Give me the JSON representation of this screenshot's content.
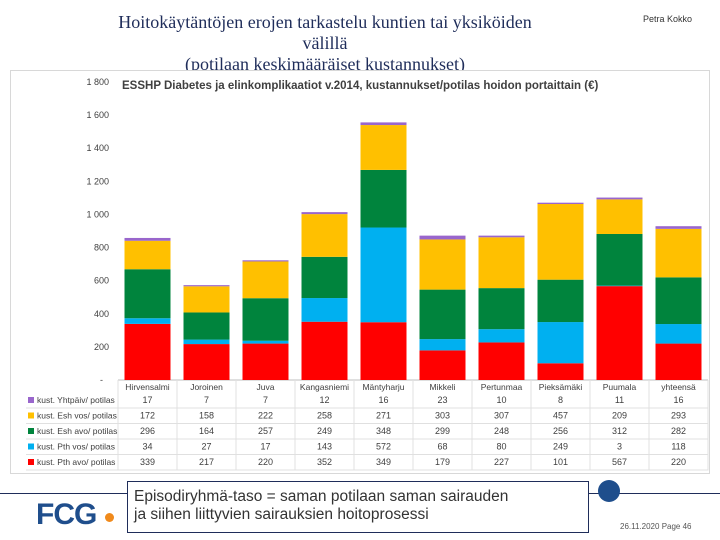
{
  "slide": {
    "title_line1": "Hoitokäytäntöjen erojen tarkastelu kuntien tai yksiköiden välillä",
    "title_line2": "(potilaan keskimääräiset kustannukset)",
    "author": "Petra Kokko",
    "footer_text_line1": "Episodiryhmä-taso = saman potilaan saman sairauden",
    "footer_text_line2": "ja siihen liittyvien sairauksien hoitoprosessi",
    "logo_text": "FCG",
    "date": "26.11.2020",
    "page": "Page 46",
    "colors": {
      "brand": "#1f4e8c",
      "accent": "#f08a1c"
    }
  },
  "chart_data": {
    "type": "bar",
    "stacked": true,
    "title": "ESSHP Diabetes ja elinkomplikaatiot v.2014, kustannukset/potilas hoidon portaittain (€)",
    "ylim": [
      0,
      1800
    ],
    "yticks": [
      200,
      400,
      600,
      800,
      1000,
      1200,
      1400,
      1600,
      1800
    ],
    "ytick_labels": [
      "200",
      "400",
      "600",
      "800",
      "1 000",
      "1 200",
      "1 400",
      "1 600",
      "1 800"
    ],
    "zero_label": "-",
    "categories": [
      "Hirvensalmi",
      "Joroinen",
      "Juva",
      "Kangasniemi",
      "Mäntyharju",
      "Mikkeli",
      "Pertunmaa",
      "Pieksämäki",
      "Puumala",
      "yhteensä"
    ],
    "series": [
      {
        "name": "kust. Pth avo/ potilas",
        "color": "#ff0000",
        "values": [
          339,
          217,
          220,
          352,
          349,
          179,
          227,
          101,
          567,
          220
        ]
      },
      {
        "name": "kust. Pth vos/ potilas",
        "color": "#00b0f0",
        "values": [
          34,
          27,
          17,
          143,
          572,
          68,
          80,
          249,
          3,
          118
        ]
      },
      {
        "name": "kust. Esh avo/ potilas",
        "color": "#00843d",
        "values": [
          296,
          164,
          257,
          249,
          348,
          299,
          248,
          256,
          312,
          282
        ]
      },
      {
        "name": "kust. Esh vos/ potilas",
        "color": "#ffc000",
        "values": [
          172,
          158,
          222,
          258,
          271,
          303,
          307,
          457,
          209,
          293
        ]
      },
      {
        "name": "kust. Yhtpäiv/ potilas",
        "color": "#9966cc",
        "values": [
          17,
          7,
          7,
          12,
          16,
          23,
          10,
          8,
          11,
          16
        ]
      }
    ],
    "table_rows_order": [
      4,
      3,
      2,
      1,
      0
    ]
  }
}
